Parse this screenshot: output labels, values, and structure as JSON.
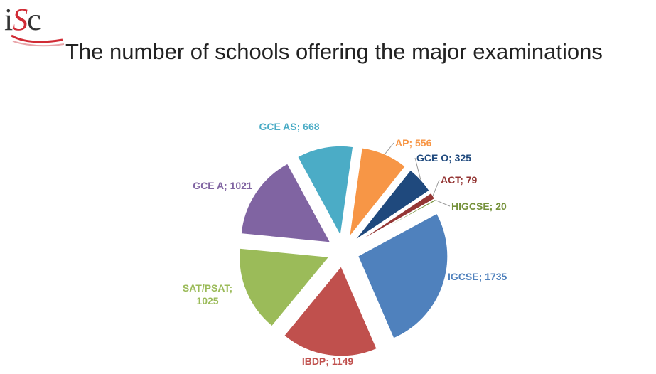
{
  "logo": {
    "text_i": "i",
    "text_s": "S",
    "text_c": "c"
  },
  "header": {
    "title": "The number of schools offering the major examinations"
  },
  "chart_data": {
    "type": "pie",
    "title": "The number of schools offering the major examinations",
    "exploded": true,
    "slices": [
      {
        "label": "AP; 556",
        "name": "AP",
        "value": 556,
        "color": "#F79646"
      },
      {
        "label": "GCE O; 325",
        "name": "GCE O",
        "value": 325,
        "color": "#1F497D"
      },
      {
        "label": "ACT; 79",
        "name": "ACT",
        "value": 79,
        "color": "#943634"
      },
      {
        "label": "HIGCSE; 20",
        "name": "HIGCSE",
        "value": 20,
        "color": "#76923C"
      },
      {
        "label": "IGCSE; 1735",
        "name": "IGCSE",
        "value": 1735,
        "color": "#4F81BD"
      },
      {
        "label": "IBDP; 1149",
        "name": "IBDP",
        "value": 1149,
        "color": "#C0504D"
      },
      {
        "label": "SAT/PSAT; 1025",
        "name": "SAT/PSAT",
        "value": 1025,
        "color": "#9BBB59"
      },
      {
        "label": "GCE A; 1021",
        "name": "GCE A",
        "value": 1021,
        "color": "#8064A2"
      },
      {
        "label": "GCE AS; 668",
        "name": "GCE AS",
        "value": 668,
        "color": "#4BACC6"
      }
    ]
  }
}
